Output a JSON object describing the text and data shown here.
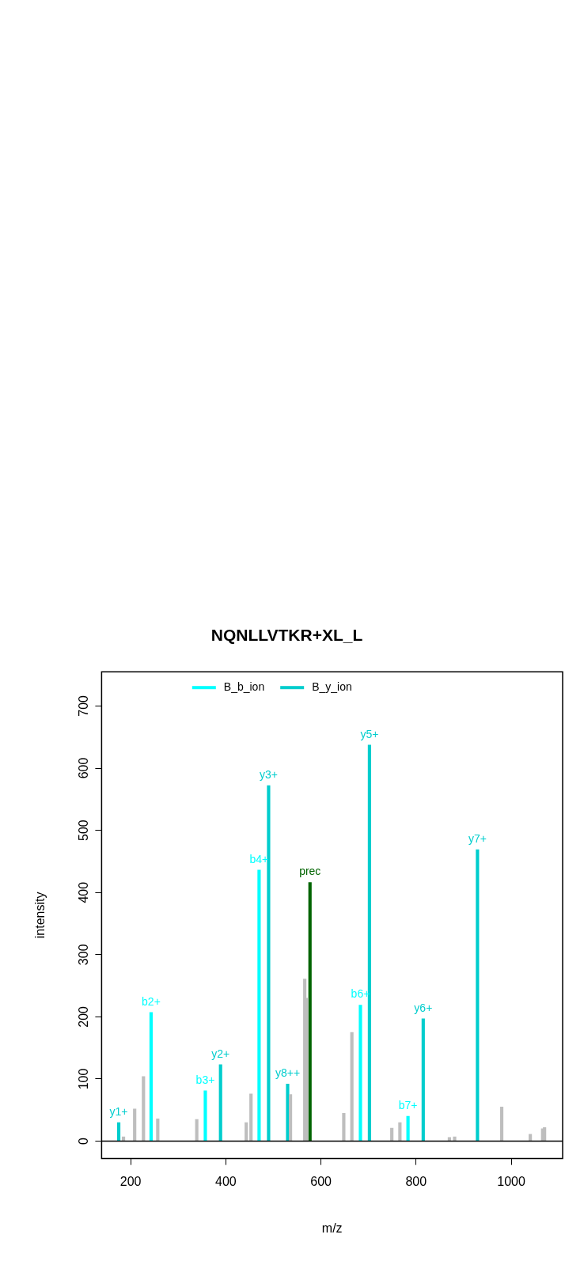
{
  "chart_data": {
    "type": "bar",
    "title": "NQNLLVTKR+XL_L",
    "xlabel": "m/z",
    "ylabel": "intensity",
    "xlim": [
      139,
      1108
    ],
    "xticks": [
      200,
      400,
      600,
      800,
      1000
    ],
    "ylim": [
      -28,
      755
    ],
    "yticks": [
      0,
      100,
      200,
      300,
      400,
      500,
      600,
      700
    ],
    "grid": false,
    "legend": "top",
    "ref_lines": [
      {
        "axis": "y",
        "value": 0,
        "color": "#000000"
      }
    ],
    "series": [
      {
        "color": "#bebebe",
        "x": [
          185,
          208.5,
          227,
          257,
          339,
          443,
          453,
          536,
          566,
          570,
          648,
          665,
          749,
          766,
          870,
          881,
          980,
          1040,
          1066,
          1070
        ],
        "values": [
          7,
          52,
          104,
          36,
          35,
          30,
          76,
          75,
          261,
          230,
          45,
          175,
          21,
          30,
          6,
          7,
          55,
          11,
          20,
          22
        ]
      },
      {
        "name": "B_b_ion",
        "color": "#00ffff",
        "x": [
          243,
          357,
          470,
          683,
          783
        ],
        "values": [
          207,
          81,
          436,
          219,
          40
        ],
        "value_labels": [
          "b2+",
          "b3+",
          "b4+",
          "b6+",
          "b7+"
        ]
      },
      {
        "name": "B_y_ion",
        "color": "#00cdcd",
        "x": [
          175,
          389,
          490,
          530,
          702,
          815,
          929
        ],
        "values": [
          30,
          123,
          572,
          92,
          637,
          197,
          469
        ],
        "value_labels": [
          "y1+",
          "y2+",
          "y3+",
          "y8++",
          "y5+",
          "y6+",
          "y7+"
        ]
      },
      {
        "color": "#006400",
        "x": [
          577
        ],
        "values": [
          416
        ],
        "value_labels": [
          "prec"
        ]
      }
    ]
  }
}
